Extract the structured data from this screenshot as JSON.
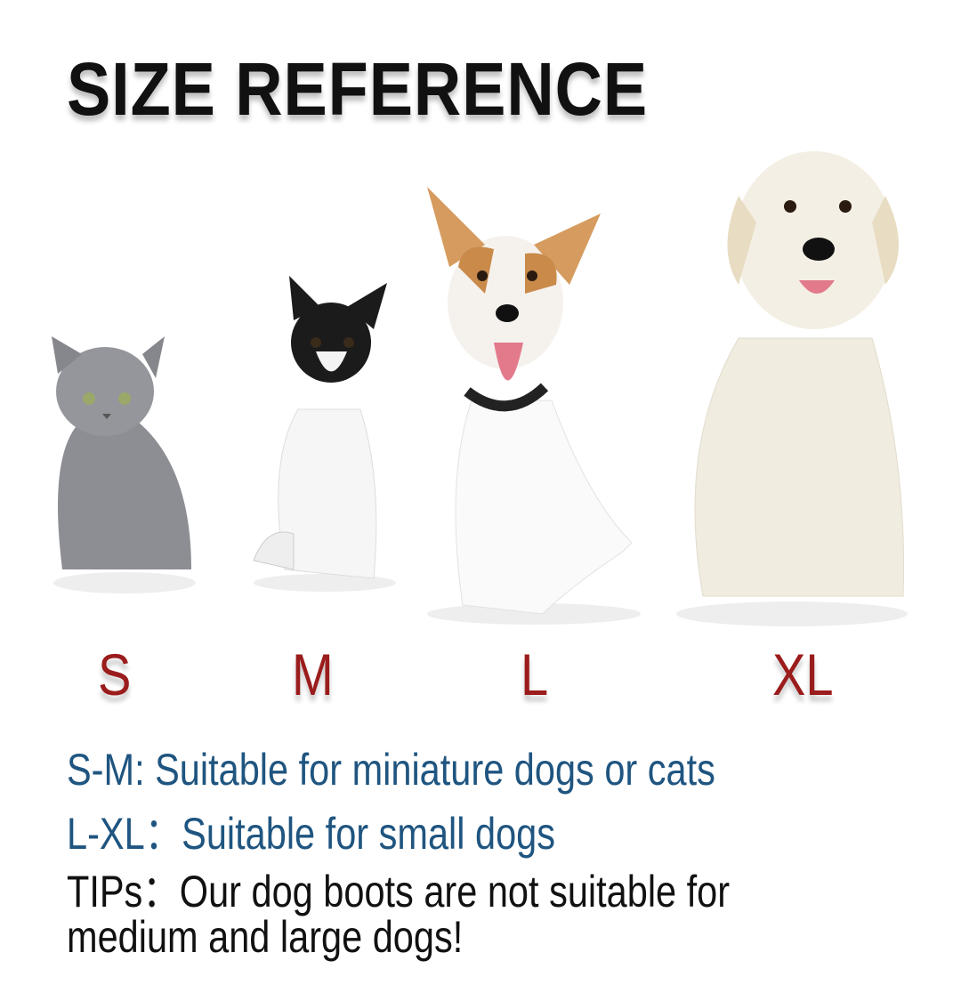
{
  "title": "SIZE REFERENCE",
  "colors": {
    "size_label": "#9b1c1c",
    "suitable_text": "#1f5580",
    "tips_text": "#111111"
  },
  "pets": [
    {
      "size": "S",
      "animal": "grey kitten"
    },
    {
      "size": "M",
      "animal": "chihuahua"
    },
    {
      "size": "L",
      "animal": "jack russell terrier"
    },
    {
      "size": "XL",
      "animal": "golden retriever puppy"
    }
  ],
  "sizes": [
    "S",
    "M",
    "L",
    "XL"
  ],
  "notes": {
    "sm": "S-M: Suitable for miniature dogs or cats",
    "lxl": "L-XL：Suitable for small dogs",
    "tips_line1": "TIPs：Our dog boots are not suitable for",
    "tips_line2": "medium and large dogs!"
  }
}
